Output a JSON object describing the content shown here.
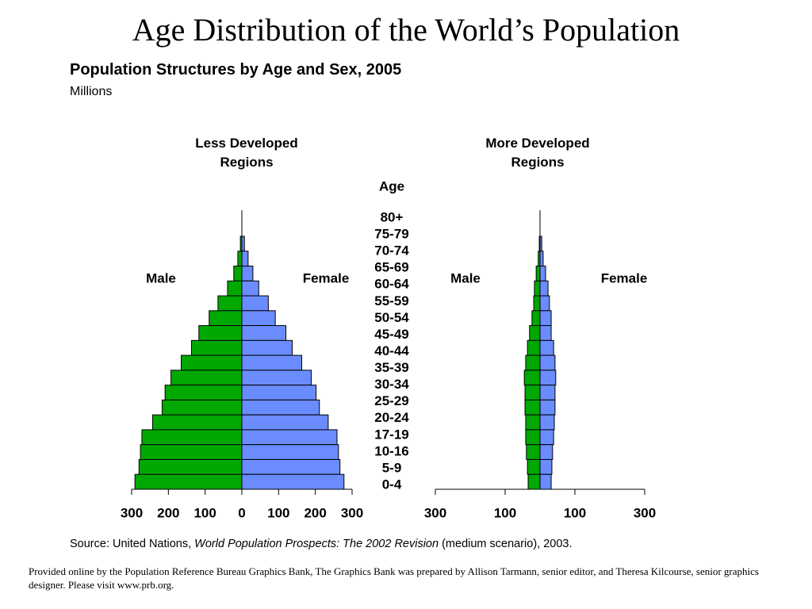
{
  "title": "Age Distribution of the World’s Population",
  "subtitle": "Population Structures by Age and Sex, 2005",
  "unit": "Millions",
  "source": {
    "prefix": "Source: United Nations, ",
    "italic": "World Population Prospects: The 2002 Revision",
    "suffix": " (medium scenario), 2003."
  },
  "footer": "Provided online by the Population Reference Bureau Graphics Bank, The Graphics Bank was prepared by Allison Tarmann, senior editor, and Theresa Kilcourse, senior graphics designer. Please visit www.prb.org.",
  "chart_data": [
    {
      "type": "pyramid",
      "title": "Less Developed Regions",
      "category_label": "Age",
      "categories": [
        "80+",
        "75-79",
        "70-74",
        "65-69",
        "60-64",
        "55-59",
        "50-54",
        "45-49",
        "40-44",
        "35-39",
        "30-34",
        "25-29",
        "20-24",
        "17-19",
        "10-16",
        "5-9",
        "0-4"
      ],
      "series": [
        {
          "name": "Male",
          "color": "#00a800",
          "values": [
            4,
            11,
            22,
            39,
            65,
            89,
            117,
            137,
            165,
            193,
            209,
            217,
            243,
            272,
            276,
            280,
            291
          ]
        },
        {
          "name": "Female",
          "color": "#6a8cff",
          "values": [
            7,
            17,
            30,
            46,
            72,
            91,
            120,
            137,
            163,
            189,
            202,
            211,
            235,
            259,
            263,
            267,
            278
          ]
        }
      ],
      "xlim": [
        -300,
        300
      ],
      "xticks": [
        {
          "value": -300,
          "label": "300"
        },
        {
          "value": -200,
          "label": "200"
        },
        {
          "value": -100,
          "label": "100"
        },
        0,
        100,
        200,
        300
      ]
    },
    {
      "type": "pyramid",
      "title": "More Developed Regions",
      "series": [
        {
          "name": "Male",
          "color": "#00a800",
          "values": [
            2,
            5,
            11,
            16,
            18,
            23,
            30,
            36,
            41,
            45,
            43,
            43,
            41,
            41,
            39,
            36,
            34
          ]
        },
        {
          "name": "Female",
          "color": "#6a8cff",
          "values": [
            5,
            9,
            16,
            23,
            27,
            32,
            32,
            39,
            43,
            45,
            43,
            43,
            41,
            39,
            36,
            34,
            32
          ]
        }
      ],
      "xlim": [
        -300,
        300
      ],
      "xticks": [
        {
          "value": -300,
          "label": "300"
        },
        {
          "value": -100,
          "label": "100"
        },
        100,
        300
      ]
    }
  ]
}
